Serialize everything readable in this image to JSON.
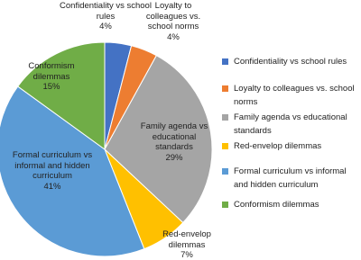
{
  "chart_data": {
    "type": "pie",
    "categories": [
      "Confidentiality vs school rules",
      "Loyalty to colleagues vs. school norms",
      "Family agenda vs educational standards",
      "Red-envelop dilemmas",
      "Formal curriculum vs informal and hidden curriculum",
      "Conformism dilemmas"
    ],
    "values": [
      4,
      4,
      29,
      7,
      41,
      15
    ],
    "value_labels": [
      "4%",
      "4%",
      "29%",
      "7%",
      "41%",
      "15%"
    ],
    "colors": [
      "#4472c4",
      "#ed7d31",
      "#a5a5a5",
      "#ffc000",
      "#5b9bd5",
      "#70ad47"
    ],
    "legend": "right"
  }
}
